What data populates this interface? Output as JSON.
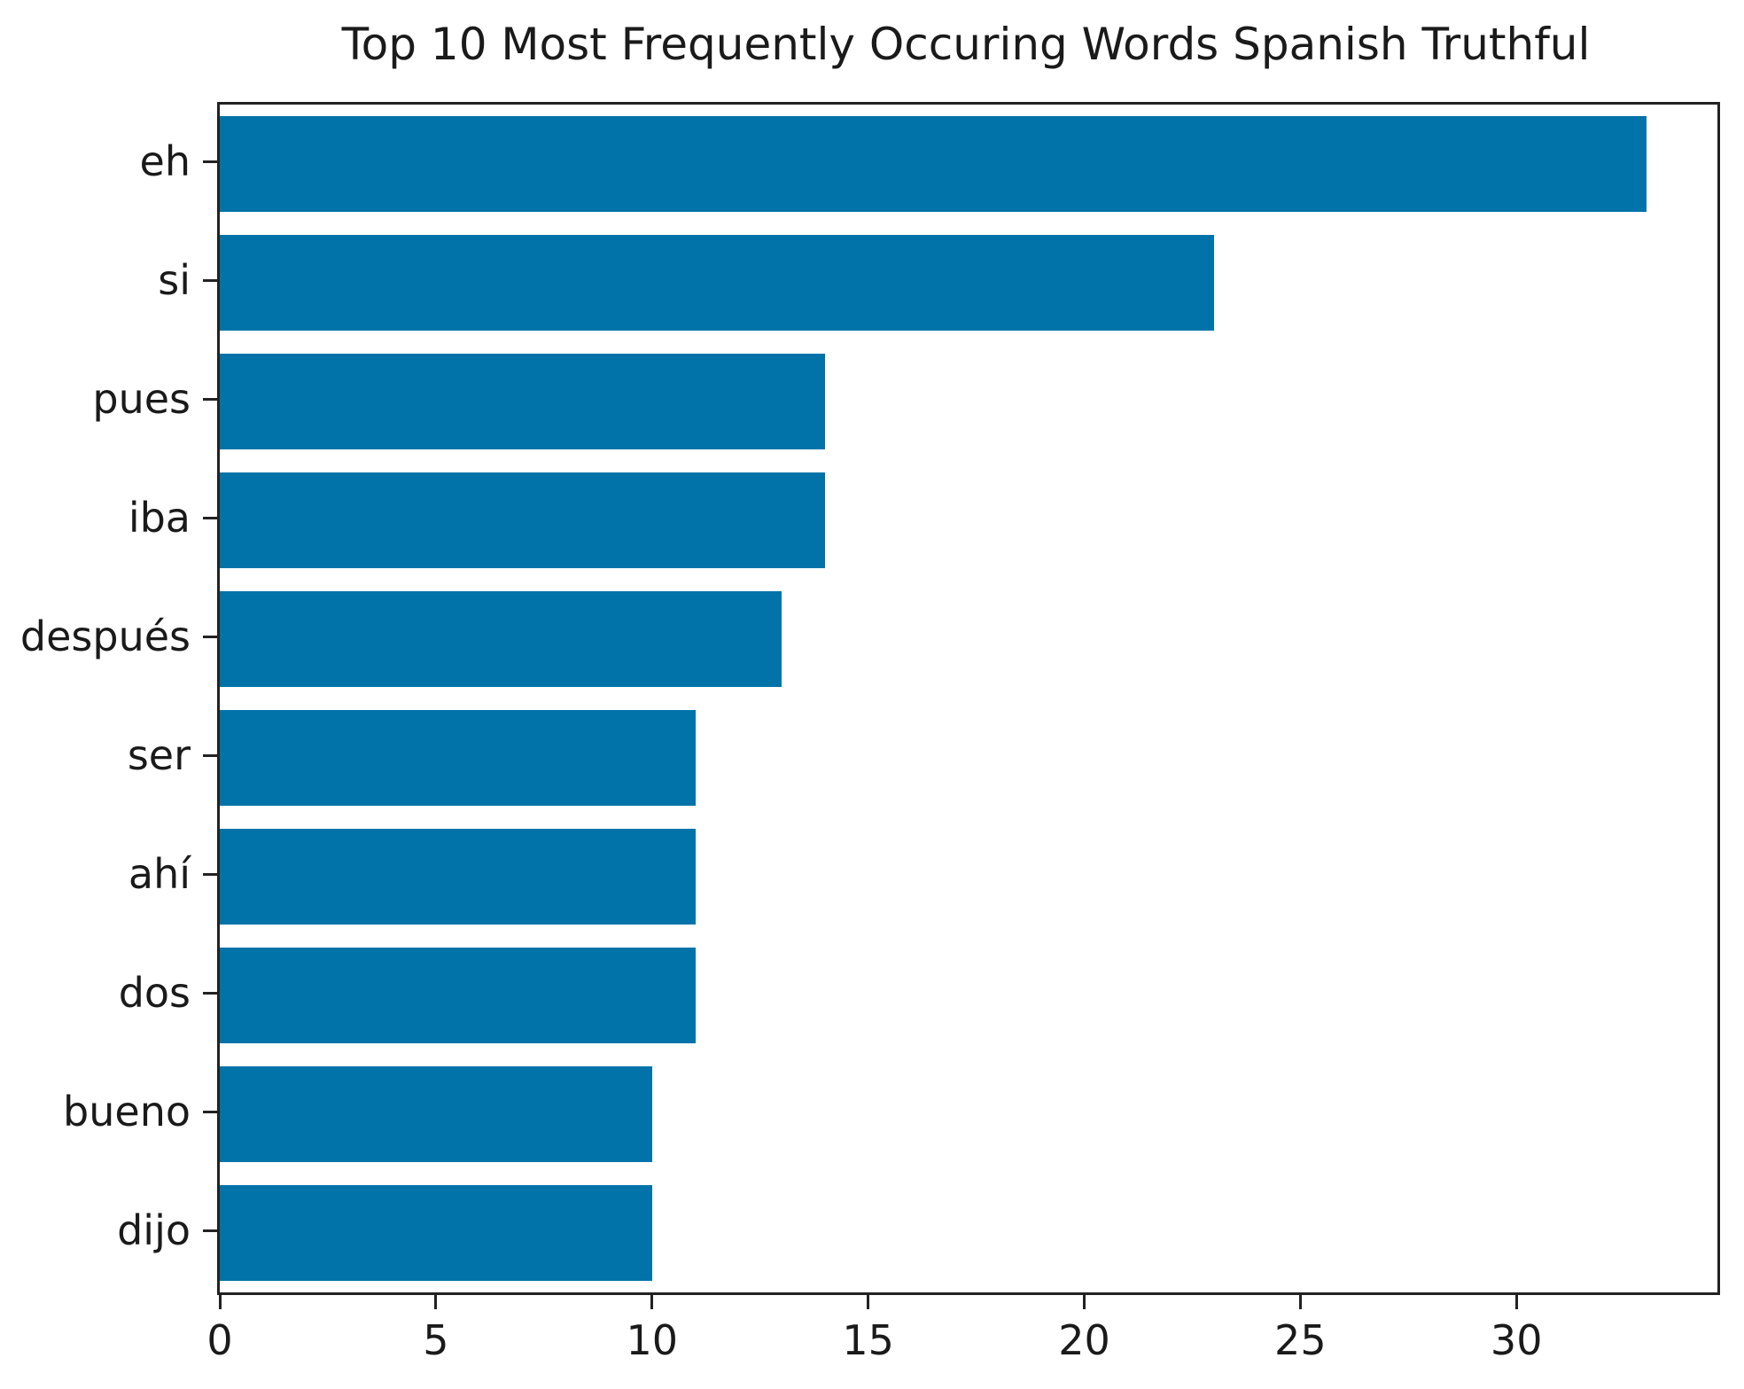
{
  "figure": {
    "background_color": "#ffffff",
    "axis_color": "#222222",
    "text_color": "#1a1a1a"
  },
  "chart_data": {
    "type": "bar",
    "orientation": "horizontal",
    "title": "Top 10 Most Frequently Occuring Words Spanish Truthful",
    "categories": [
      "eh",
      "si",
      "pues",
      "iba",
      "después",
      "ser",
      "ahí",
      "dos",
      "bueno",
      "dijo"
    ],
    "values": [
      33,
      23,
      14,
      14,
      13,
      11,
      11,
      11,
      10,
      10
    ],
    "bar_color": "#0273a9",
    "xlabel": "",
    "ylabel": "",
    "x_ticks": [
      0,
      5,
      10,
      15,
      20,
      25,
      30
    ],
    "xlim": [
      0,
      34.65
    ],
    "grid": false,
    "legend": "none",
    "bar_fraction_of_band": 0.8
  }
}
